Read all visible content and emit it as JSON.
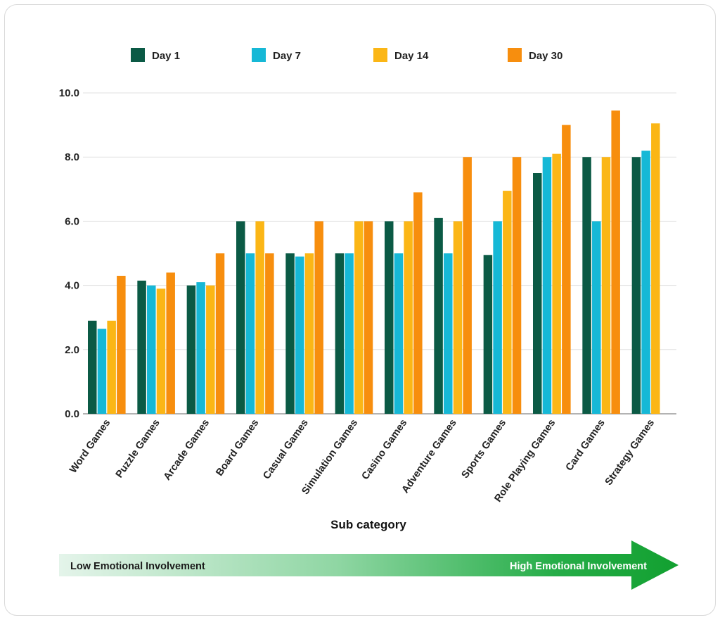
{
  "chart_data": {
    "type": "bar",
    "title": "",
    "xlabel": "Sub category",
    "ylabel": "",
    "ylim": [
      0,
      10
    ],
    "yticks": [
      "0.0",
      "2.0",
      "4.0",
      "6.0",
      "8.0",
      "10.0"
    ],
    "grid": true,
    "legend_position": "top",
    "categories": [
      "Word Games",
      "Puzzle Games",
      "Arcade Games",
      "Board Games",
      "Casual Games",
      "Simulation Games",
      "Casino Games",
      "Adventure Games",
      "Sports Games",
      "Role Playing Games",
      "Card Games",
      "Strategy Games"
    ],
    "series": [
      {
        "name": "Day 1",
        "color": "#0b5a45",
        "values": [
          2.9,
          4.15,
          4.0,
          6.0,
          5.0,
          5.0,
          6.0,
          6.1,
          4.95,
          7.5,
          8.0,
          8.0
        ]
      },
      {
        "name": "Day 7",
        "color": "#16b8d6",
        "values": [
          2.65,
          4.0,
          4.1,
          5.0,
          4.9,
          5.0,
          5.0,
          5.0,
          6.0,
          8.0,
          6.0,
          8.2
        ]
      },
      {
        "name": "Day 14",
        "color": "#fbb616",
        "values": [
          2.9,
          3.9,
          4.0,
          6.0,
          5.0,
          6.0,
          6.0,
          6.0,
          6.95,
          8.1,
          8.0,
          9.05
        ]
      },
      {
        "name": "Day 30",
        "color": "#f78e0e",
        "values": [
          4.3,
          4.4,
          5.0,
          5.0,
          6.0,
          6.0,
          6.9,
          8.0,
          8.0,
          9.0,
          9.45,
          null
        ]
      }
    ]
  },
  "involvement_arrow": {
    "low_label": "Low Emotional Involvement",
    "high_label": "High Emotional Involvement",
    "color": "#1aa637"
  }
}
